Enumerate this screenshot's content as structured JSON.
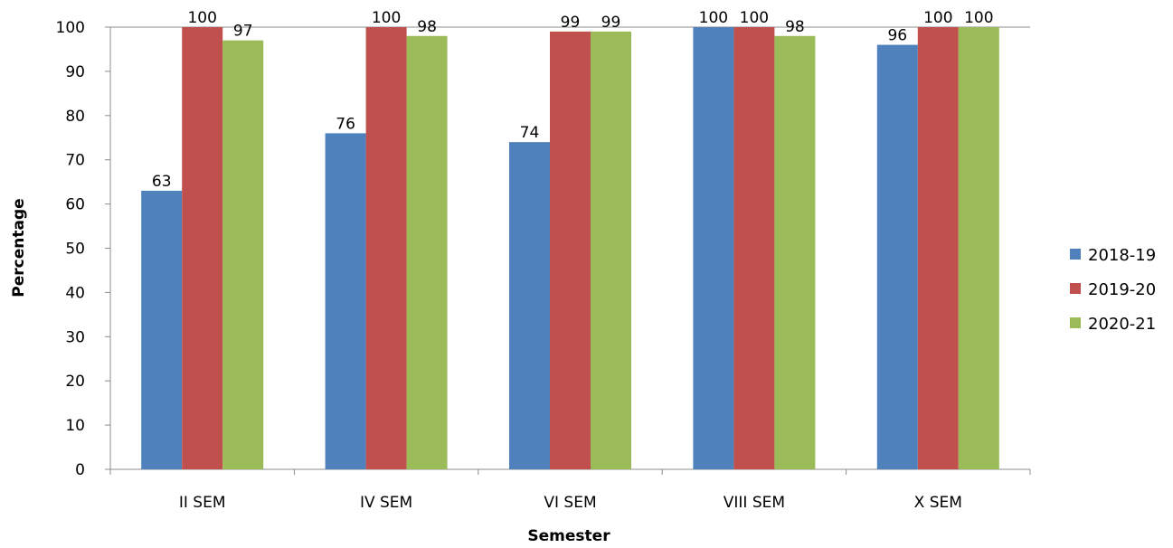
{
  "chart_data": {
    "type": "bar",
    "title": "",
    "xlabel": "Semester",
    "ylabel": "Percentage",
    "ylim": [
      0,
      100
    ],
    "ytick_step": 10,
    "grid": false,
    "legend_position": "right",
    "categories": [
      "II SEM",
      "IV SEM",
      "VI SEM",
      "VIII SEM",
      "X SEM"
    ],
    "series": [
      {
        "name": "2018-19",
        "color": "#4F81BD",
        "values": [
          63,
          76,
          74,
          100,
          96
        ]
      },
      {
        "name": "2019-20",
        "color": "#C0504D",
        "values": [
          100,
          100,
          99,
          100,
          100
        ]
      },
      {
        "name": "2020-21",
        "color": "#9BBB59",
        "values": [
          97,
          98,
          99,
          98,
          100
        ]
      }
    ]
  }
}
